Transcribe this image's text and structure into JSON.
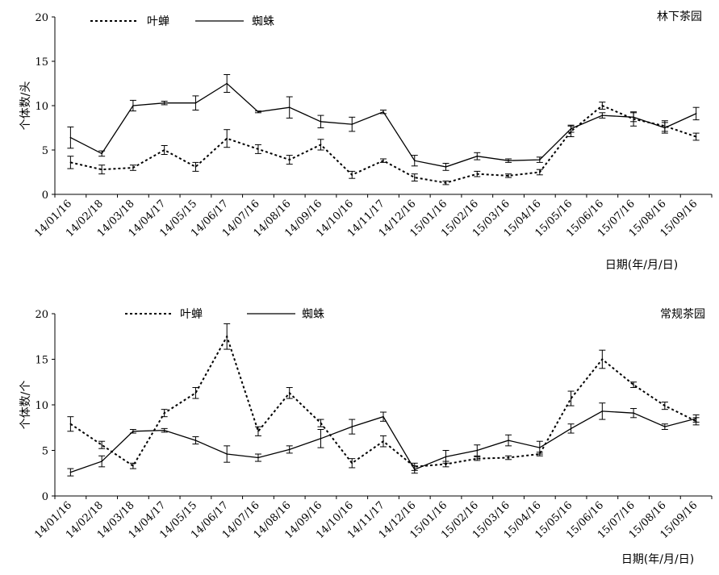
{
  "chart_data": [
    {
      "type": "line",
      "annotation": "林下茶园",
      "ylabel": "个体数/头",
      "xlabel": "日期(年/月/日)",
      "ylim": [
        0,
        20
      ],
      "yticks": [
        0,
        5,
        10,
        15,
        20
      ],
      "grid": false,
      "legend": "top-left",
      "categories": [
        "14/01/16",
        "14/02/18",
        "14/03/18",
        "14/04/17",
        "14/05/15",
        "14/06/17",
        "14/07/16",
        "14/08/16",
        "14/09/16",
        "14/10/16",
        "14/11/17",
        "14/12/16",
        "15/01/16",
        "15/02/16",
        "15/03/16",
        "15/04/16",
        "15/05/16",
        "15/06/16",
        "15/07/16",
        "15/08/16",
        "15/09/16"
      ],
      "series": [
        {
          "name": "叶蝉",
          "style": "dotted",
          "values": [
            3.6,
            2.8,
            3.0,
            5.0,
            3.1,
            6.3,
            5.1,
            3.9,
            5.6,
            2.2,
            3.8,
            1.9,
            1.3,
            2.3,
            2.1,
            2.5,
            7.1,
            10.0,
            8.5,
            7.7,
            6.5
          ],
          "errors": [
            0.7,
            0.5,
            0.3,
            0.5,
            0.5,
            1.0,
            0.5,
            0.5,
            0.6,
            0.4,
            0.2,
            0.4,
            0.2,
            0.3,
            0.2,
            0.3,
            0.6,
            0.4,
            0.8,
            0.6,
            0.4
          ]
        },
        {
          "name": "蜘蛛",
          "style": "solid",
          "values": [
            6.4,
            4.6,
            10.0,
            10.3,
            10.3,
            12.5,
            9.3,
            9.8,
            8.2,
            7.9,
            9.3,
            3.8,
            3.1,
            4.3,
            3.8,
            3.9,
            7.4,
            8.9,
            8.7,
            7.5,
            9.1
          ],
          "errors": [
            1.2,
            0.3,
            0.6,
            0.2,
            0.8,
            1.0,
            0.1,
            1.2,
            0.7,
            0.8,
            0.2,
            0.6,
            0.4,
            0.4,
            0.2,
            0.3,
            0.4,
            0.3,
            0.5,
            0.6,
            0.7
          ]
        }
      ]
    },
    {
      "type": "line",
      "annotation": "常规茶园",
      "ylabel": "个体数/个",
      "xlabel": "日期(年/月/日)",
      "ylim": [
        0,
        20
      ],
      "yticks": [
        0,
        5,
        10,
        15,
        20
      ],
      "grid": false,
      "legend": "top-left",
      "categories": [
        "14/01/16",
        "14/02/18",
        "14/03/18",
        "14/04/17",
        "14/05/15",
        "14/06/17",
        "14/07/16",
        "14/08/16",
        "14/09/16",
        "14/10/16",
        "14/11/17",
        "14/12/16",
        "15/01/16",
        "15/02/16",
        "15/03/16",
        "15/04/16",
        "15/05/16",
        "15/06/16",
        "15/07/16",
        "15/08/16",
        "15/09/16"
      ],
      "series": [
        {
          "name": "叶蝉",
          "style": "dotted",
          "values": [
            7.9,
            5.6,
            3.3,
            9.1,
            11.3,
            17.5,
            7.1,
            11.3,
            8.0,
            3.6,
            6.0,
            3.2,
            3.5,
            4.1,
            4.2,
            4.6,
            10.7,
            15.0,
            12.2,
            9.9,
            8.2
          ],
          "errors": [
            0.8,
            0.4,
            0.3,
            0.4,
            0.6,
            1.4,
            0.5,
            0.6,
            0.4,
            0.5,
            0.6,
            0.4,
            0.3,
            0.2,
            0.2,
            0.2,
            0.8,
            1.0,
            0.3,
            0.4,
            0.4
          ]
        },
        {
          "name": "蜘蛛",
          "style": "solid",
          "values": [
            2.6,
            3.8,
            7.1,
            7.2,
            6.1,
            4.6,
            4.2,
            5.1,
            6.3,
            7.6,
            8.7,
            2.9,
            4.3,
            5.0,
            6.1,
            5.3,
            7.4,
            9.3,
            9.1,
            7.6,
            8.5
          ],
          "errors": [
            0.4,
            0.6,
            0.2,
            0.2,
            0.4,
            0.9,
            0.4,
            0.4,
            1.0,
            0.8,
            0.5,
            0.4,
            0.7,
            0.6,
            0.6,
            0.7,
            0.5,
            0.9,
            0.5,
            0.3,
            0.4
          ]
        }
      ]
    }
  ]
}
